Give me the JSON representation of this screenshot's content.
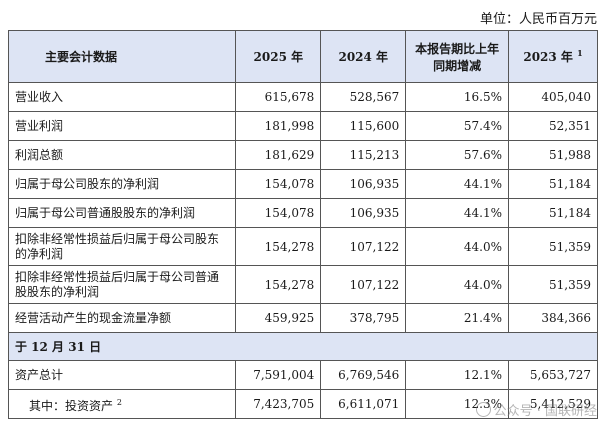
{
  "unit_label": "单位：人民币百万元",
  "header": {
    "col0": "主要会计数据",
    "col1": "2025 年",
    "col2": "2024 年",
    "col3_line1": "本报告期比上年",
    "col3_line2": "同期增减",
    "col4": "2023 年",
    "col4_note": "1"
  },
  "rows": [
    {
      "label": "营业收入",
      "v2025": "615,678",
      "v2024": "528,567",
      "change": "16.5%",
      "v2023": "405,040"
    },
    {
      "label": "营业利润",
      "v2025": "181,998",
      "v2024": "115,600",
      "change": "57.4%",
      "v2023": "52,351"
    },
    {
      "label": "利润总额",
      "v2025": "181,629",
      "v2024": "115,213",
      "change": "57.6%",
      "v2023": "51,988"
    },
    {
      "label": "归属于母公司股东的净利润",
      "v2025": "154,078",
      "v2024": "106,935",
      "change": "44.1%",
      "v2023": "51,184"
    },
    {
      "label": "归属于母公司普通股股东的净利润",
      "v2025": "154,078",
      "v2024": "106,935",
      "change": "44.1%",
      "v2023": "51,184"
    },
    {
      "label": "扣除非经常性损益后归属于母公司股东的净利润",
      "v2025": "154,278",
      "v2024": "107,122",
      "change": "44.0%",
      "v2023": "51,359"
    },
    {
      "label": "扣除非经常性损益后归属于母公司普通股股东的净利润",
      "v2025": "154,278",
      "v2024": "107,122",
      "change": "44.0%",
      "v2023": "51,359"
    },
    {
      "label": "经营活动产生的现金流量净额",
      "v2025": "459,925",
      "v2024": "378,795",
      "change": "21.4%",
      "v2023": "384,366"
    }
  ],
  "section_label": "于 12 月 31 日",
  "rows_b": [
    {
      "label": "资产总计",
      "v2025": "7,591,004",
      "v2024": "6,769,546",
      "change": "12.1%",
      "v2023": "5,653,727"
    },
    {
      "label": "其中：投资资产",
      "note": "2",
      "v2025": "7,423,705",
      "v2024": "6,611,071",
      "change": "12.3%",
      "v2023": "5,412,529"
    }
  ],
  "watermark": "公众号 · 国联研经"
}
